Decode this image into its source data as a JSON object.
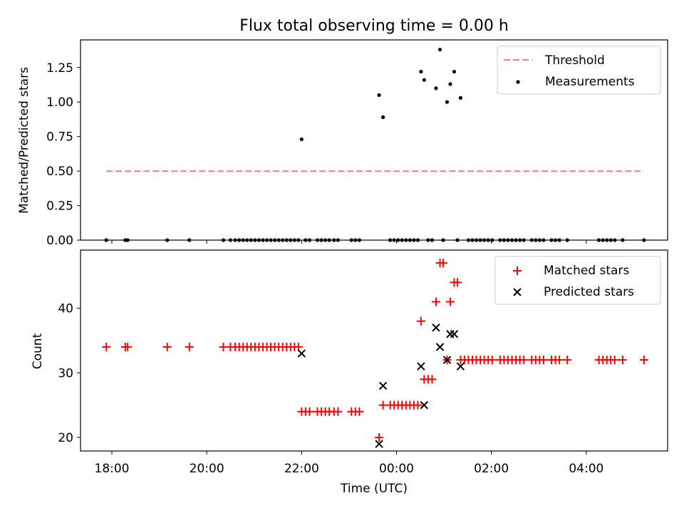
{
  "title": "Flux total observing time = 0.00 h",
  "chart_data": [
    {
      "type": "scatter",
      "panel": "top",
      "ylabel": "Matched/Predicted stars",
      "xlabel": "",
      "ylim": [
        0,
        1.45
      ],
      "yticks": [
        "0.00",
        "0.25",
        "0.50",
        "0.75",
        "1.00",
        "1.25"
      ],
      "legend_position": "top-right",
      "series": [
        {
          "name": "Threshold",
          "kind": "dashed-line",
          "color": "#ff7f7f",
          "x": [
            "17:53",
            "05:13"
          ],
          "y": [
            0.5,
            0.5
          ]
        },
        {
          "name": "Measurements",
          "kind": "points",
          "color": "#000000",
          "points": [
            [
              "17:53",
              0
            ],
            [
              "18:17",
              0
            ],
            [
              "18:20",
              0
            ],
            [
              "19:10",
              0
            ],
            [
              "19:38",
              0
            ],
            [
              "20:21",
              0
            ],
            [
              "20:30",
              0
            ],
            [
              "20:36",
              0
            ],
            [
              "20:41",
              0
            ],
            [
              "20:46",
              0
            ],
            [
              "20:51",
              0
            ],
            [
              "20:56",
              0
            ],
            [
              "21:01",
              0
            ],
            [
              "21:06",
              0
            ],
            [
              "21:11",
              0
            ],
            [
              "21:16",
              0
            ],
            [
              "21:21",
              0
            ],
            [
              "21:26",
              0
            ],
            [
              "21:31",
              0
            ],
            [
              "21:36",
              0
            ],
            [
              "21:41",
              0
            ],
            [
              "21:46",
              0
            ],
            [
              "21:51",
              0
            ],
            [
              "21:56",
              0
            ],
            [
              "22:00",
              0.73
            ],
            [
              "22:05",
              0
            ],
            [
              "22:10",
              0
            ],
            [
              "22:20",
              0
            ],
            [
              "22:25",
              0
            ],
            [
              "22:30",
              0
            ],
            [
              "22:35",
              0
            ],
            [
              "22:41",
              0
            ],
            [
              "22:46",
              0
            ],
            [
              "23:03",
              0
            ],
            [
              "23:08",
              0
            ],
            [
              "23:13",
              0
            ],
            [
              "23:38",
              1.05
            ],
            [
              "23:43",
              0.89
            ],
            [
              "23:52",
              0
            ],
            [
              "23:57",
              0
            ],
            [
              "00:02",
              0
            ],
            [
              "00:07",
              0
            ],
            [
              "00:12",
              0
            ],
            [
              "00:17",
              0
            ],
            [
              "00:22",
              0
            ],
            [
              "00:27",
              0
            ],
            [
              "00:31",
              1.22
            ],
            [
              "00:35",
              1.16
            ],
            [
              "00:40",
              0
            ],
            [
              "00:45",
              0
            ],
            [
              "00:50",
              1.1
            ],
            [
              "00:55",
              1.38
            ],
            [
              "00:59",
              0
            ],
            [
              "01:04",
              1.0
            ],
            [
              "01:08",
              1.13
            ],
            [
              "01:13",
              1.22
            ],
            [
              "01:17",
              0
            ],
            [
              "01:21",
              1.03
            ],
            [
              "01:31",
              0
            ],
            [
              "01:36",
              0
            ],
            [
              "01:41",
              0
            ],
            [
              "01:46",
              0
            ],
            [
              "01:51",
              0
            ],
            [
              "01:56",
              0
            ],
            [
              "02:01",
              0
            ],
            [
              "02:11",
              0
            ],
            [
              "02:16",
              0
            ],
            [
              "02:21",
              0
            ],
            [
              "02:26",
              0
            ],
            [
              "02:31",
              0
            ],
            [
              "02:36",
              0
            ],
            [
              "02:41",
              0
            ],
            [
              "02:51",
              0
            ],
            [
              "02:56",
              0
            ],
            [
              "03:01",
              0
            ],
            [
              "03:06",
              0
            ],
            [
              "03:16",
              0
            ],
            [
              "03:21",
              0
            ],
            [
              "03:26",
              0
            ],
            [
              "03:36",
              0
            ],
            [
              "04:16",
              0
            ],
            [
              "04:21",
              0
            ],
            [
              "04:26",
              0
            ],
            [
              "04:31",
              0
            ],
            [
              "04:36",
              0
            ],
            [
              "04:46",
              0
            ],
            [
              "05:13",
              0
            ]
          ]
        }
      ]
    },
    {
      "type": "scatter",
      "panel": "bottom",
      "ylabel": "Count",
      "xlabel": "Time (UTC)",
      "ylim": [
        17.9,
        49
      ],
      "yticks": [
        "20",
        "30",
        "40"
      ],
      "xticks": [
        "18:00",
        "20:00",
        "22:00",
        "00:00",
        "02:00",
        "04:00"
      ],
      "legend_position": "top-right",
      "series": [
        {
          "name": "Matched stars",
          "marker": "plus",
          "color": "#ff0000",
          "points": [
            [
              "17:53",
              34
            ],
            [
              "18:17",
              34
            ],
            [
              "18:20",
              34
            ],
            [
              "19:10",
              34
            ],
            [
              "19:38",
              34
            ],
            [
              "20:21",
              34
            ],
            [
              "20:30",
              34
            ],
            [
              "20:36",
              34
            ],
            [
              "20:41",
              34
            ],
            [
              "20:46",
              34
            ],
            [
              "20:51",
              34
            ],
            [
              "20:56",
              34
            ],
            [
              "21:01",
              34
            ],
            [
              "21:06",
              34
            ],
            [
              "21:11",
              34
            ],
            [
              "21:16",
              34
            ],
            [
              "21:21",
              34
            ],
            [
              "21:26",
              34
            ],
            [
              "21:31",
              34
            ],
            [
              "21:36",
              34
            ],
            [
              "21:41",
              34
            ],
            [
              "21:46",
              34
            ],
            [
              "21:51",
              34
            ],
            [
              "21:56",
              34
            ],
            [
              "22:00",
              24
            ],
            [
              "22:05",
              24
            ],
            [
              "22:10",
              24
            ],
            [
              "22:20",
              24
            ],
            [
              "22:25",
              24
            ],
            [
              "22:30",
              24
            ],
            [
              "22:35",
              24
            ],
            [
              "22:41",
              24
            ],
            [
              "22:46",
              24
            ],
            [
              "23:03",
              24
            ],
            [
              "23:08",
              24
            ],
            [
              "23:13",
              24
            ],
            [
              "23:38",
              20
            ],
            [
              "23:43",
              25
            ],
            [
              "23:52",
              25
            ],
            [
              "23:57",
              25
            ],
            [
              "00:02",
              25
            ],
            [
              "00:07",
              25
            ],
            [
              "00:12",
              25
            ],
            [
              "00:17",
              25
            ],
            [
              "00:22",
              25
            ],
            [
              "00:27",
              25
            ],
            [
              "00:31",
              38
            ],
            [
              "00:35",
              29
            ],
            [
              "00:40",
              29
            ],
            [
              "00:45",
              29
            ],
            [
              "00:50",
              41
            ],
            [
              "00:55",
              47
            ],
            [
              "00:59",
              47
            ],
            [
              "01:04",
              32
            ],
            [
              "01:08",
              41
            ],
            [
              "01:13",
              44
            ],
            [
              "01:17",
              44
            ],
            [
              "01:21",
              32
            ],
            [
              "01:26",
              32
            ],
            [
              "01:31",
              32
            ],
            [
              "01:36",
              32
            ],
            [
              "01:41",
              32
            ],
            [
              "01:46",
              32
            ],
            [
              "01:51",
              32
            ],
            [
              "01:56",
              32
            ],
            [
              "02:01",
              32
            ],
            [
              "02:11",
              32
            ],
            [
              "02:16",
              32
            ],
            [
              "02:21",
              32
            ],
            [
              "02:26",
              32
            ],
            [
              "02:31",
              32
            ],
            [
              "02:36",
              32
            ],
            [
              "02:41",
              32
            ],
            [
              "02:51",
              32
            ],
            [
              "02:56",
              32
            ],
            [
              "03:01",
              32
            ],
            [
              "03:06",
              32
            ],
            [
              "03:16",
              32
            ],
            [
              "03:21",
              32
            ],
            [
              "03:26",
              32
            ],
            [
              "03:36",
              32
            ],
            [
              "04:16",
              32
            ],
            [
              "04:21",
              32
            ],
            [
              "04:26",
              32
            ],
            [
              "04:31",
              32
            ],
            [
              "04:36",
              32
            ],
            [
              "04:46",
              32
            ],
            [
              "05:13",
              32
            ]
          ]
        },
        {
          "name": "Predicted stars",
          "marker": "x",
          "color": "#000000",
          "points": [
            [
              "22:00",
              33
            ],
            [
              "23:38",
              19
            ],
            [
              "23:43",
              28
            ],
            [
              "00:31",
              31
            ],
            [
              "00:35",
              25
            ],
            [
              "00:50",
              37
            ],
            [
              "00:55",
              34
            ],
            [
              "01:04",
              32
            ],
            [
              "01:08",
              36
            ],
            [
              "01:13",
              36
            ],
            [
              "01:21",
              31
            ]
          ]
        }
      ]
    }
  ]
}
